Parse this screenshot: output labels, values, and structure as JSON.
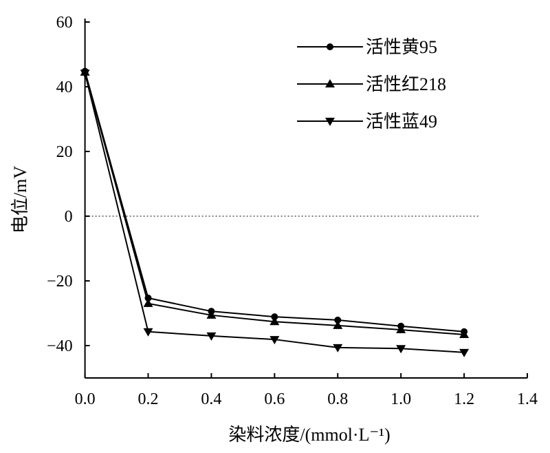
{
  "chart_data": {
    "type": "line",
    "title": "",
    "xlabel": "染料浓度/(mmol·L⁻¹)",
    "ylabel": "电位/mV",
    "xlim": [
      0,
      1.4
    ],
    "ylim": [
      -50,
      60
    ],
    "xticks": [
      "0.0",
      "0.2",
      "0.4",
      "0.6",
      "0.8",
      "1.0",
      "1.2",
      "1.4"
    ],
    "yticks": [
      "60",
      "40",
      "20",
      "0",
      "−20",
      "−40"
    ],
    "ytick_values": [
      60,
      40,
      20,
      0,
      -20,
      -40
    ],
    "xtick_values": [
      0,
      0.2,
      0.4,
      0.6,
      0.8,
      1.0,
      1.2,
      1.4
    ],
    "x": [
      0,
      0.2,
      0.4,
      0.6,
      0.8,
      1.0,
      1.2
    ],
    "legend_position": "top-right",
    "reference_line": 0,
    "series": [
      {
        "name": "活性黄95",
        "marker": "circle",
        "values": [
          44.8,
          -25.3,
          -29.4,
          -31.1,
          -32.1,
          -34.0,
          -35.7
        ]
      },
      {
        "name": "活性红218",
        "marker": "triangle-up",
        "values": [
          44.5,
          -27.0,
          -30.6,
          -32.6,
          -33.8,
          -35.1,
          -36.6
        ]
      },
      {
        "name": "活性蓝49",
        "marker": "triangle-down",
        "values": [
          44.2,
          -35.7,
          -37.0,
          -38.1,
          -40.6,
          -40.9,
          -42.1
        ]
      }
    ]
  }
}
